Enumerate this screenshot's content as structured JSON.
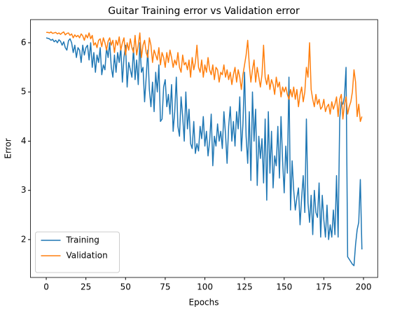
{
  "chart_data": {
    "type": "line",
    "title": "Guitar Training error vs Validation error",
    "x_label": "Epochs",
    "y_label": "Error",
    "x": [
      0,
      1,
      2,
      3,
      4,
      5,
      6,
      7,
      8,
      9,
      10,
      11,
      12,
      13,
      14,
      15,
      16,
      17,
      18,
      19,
      20,
      21,
      22,
      23,
      24,
      25,
      26,
      27,
      28,
      29,
      30,
      31,
      32,
      33,
      34,
      35,
      36,
      37,
      38,
      39,
      40,
      41,
      42,
      43,
      44,
      45,
      46,
      47,
      48,
      49,
      50,
      51,
      52,
      53,
      54,
      55,
      56,
      57,
      58,
      59,
      60,
      61,
      62,
      63,
      64,
      65,
      66,
      67,
      68,
      69,
      70,
      71,
      72,
      73,
      74,
      75,
      76,
      77,
      78,
      79,
      80,
      81,
      82,
      83,
      84,
      85,
      86,
      87,
      88,
      89,
      90,
      91,
      92,
      93,
      94,
      95,
      96,
      97,
      98,
      99,
      100,
      101,
      102,
      103,
      104,
      105,
      106,
      107,
      108,
      109,
      110,
      111,
      112,
      113,
      114,
      115,
      116,
      117,
      118,
      119,
      120,
      121,
      122,
      123,
      124,
      125,
      126,
      127,
      128,
      129,
      130,
      131,
      132,
      133,
      134,
      135,
      136,
      137,
      138,
      139,
      140,
      141,
      142,
      143,
      144,
      145,
      146,
      147,
      148,
      149,
      150,
      151,
      152,
      153,
      154,
      155,
      156,
      157,
      158,
      159,
      160,
      161,
      162,
      163,
      164,
      165,
      166,
      167,
      168,
      169,
      170,
      171,
      172,
      173,
      174,
      175,
      176,
      177,
      178,
      179,
      180,
      181,
      182,
      183,
      184,
      185,
      186,
      187,
      188,
      189,
      190,
      191,
      192,
      193,
      194,
      195,
      196,
      197,
      198,
      199
    ],
    "series": [
      {
        "name": "Training",
        "color": "#1f77b4",
        "values": [
          6.1,
          6.09,
          6.08,
          6.05,
          6.07,
          6.02,
          6.05,
          6.0,
          6.06,
          6.03,
          5.95,
          6.02,
          5.9,
          5.85,
          6.04,
          6.08,
          6.0,
          5.8,
          5.95,
          5.7,
          5.9,
          5.85,
          5.6,
          5.95,
          5.75,
          5.9,
          5.95,
          5.65,
          6.0,
          5.5,
          5.8,
          5.4,
          5.75,
          5.6,
          5.9,
          5.35,
          5.55,
          5.45,
          5.9,
          5.7,
          6.0,
          5.5,
          5.3,
          5.75,
          5.4,
          5.8,
          5.6,
          5.9,
          5.2,
          5.7,
          5.95,
          5.1,
          5.6,
          5.45,
          5.3,
          5.9,
          5.25,
          5.65,
          5.15,
          6.0,
          5.4,
          5.5,
          4.8,
          5.3,
          5.85,
          5.05,
          4.7,
          5.2,
          4.6,
          5.4,
          5.0,
          5.55,
          4.4,
          4.45,
          5.1,
          5.25,
          4.7,
          4.95,
          4.55,
          5.15,
          4.2,
          4.6,
          5.3,
          4.3,
          4.1,
          4.9,
          4.5,
          4.0,
          5.0,
          4.25,
          4.65,
          3.95,
          3.85,
          4.4,
          3.75,
          3.95,
          3.8,
          4.3,
          4.05,
          4.5,
          3.9,
          4.2,
          3.7,
          4.0,
          4.55,
          3.5,
          4.1,
          3.9,
          4.35,
          4.0,
          4.2,
          3.85,
          4.6,
          4.15,
          3.55,
          4.3,
          4.7,
          4.0,
          4.4,
          3.9,
          4.6,
          4.25,
          4.9,
          3.8,
          4.35,
          5.4,
          4.1,
          3.55,
          4.6,
          3.2,
          5.0,
          4.0,
          4.65,
          3.1,
          4.1,
          3.65,
          4.05,
          3.15,
          4.45,
          2.8,
          4.6,
          3.35,
          4.2,
          3.05,
          3.7,
          3.5,
          4.3,
          3.25,
          4.5,
          3.6,
          2.95,
          3.9,
          3.35,
          5.3,
          2.6,
          3.6,
          3.0,
          2.6,
          2.85,
          3.05,
          2.3,
          2.85,
          3.3,
          2.55,
          4.45,
          2.75,
          2.35,
          2.9,
          2.1,
          3.0,
          2.55,
          2.45,
          3.15,
          2.05,
          2.9,
          2.4,
          2.05,
          2.7,
          2.0,
          2.3,
          2.05,
          2.6,
          2.1,
          3.3,
          2.05,
          4.45,
          4.8,
          4.75,
          4.9,
          5.5,
          1.65,
          1.6,
          1.55,
          1.5,
          1.47,
          1.9,
          2.2,
          2.35,
          3.22,
          1.8
        ]
      },
      {
        "name": "Validation",
        "color": "#ff7f0e",
        "values": [
          6.21,
          6.21,
          6.2,
          6.22,
          6.19,
          6.2,
          6.21,
          6.18,
          6.2,
          6.17,
          6.2,
          6.22,
          6.16,
          6.19,
          6.2,
          6.15,
          6.18,
          6.1,
          6.16,
          6.12,
          6.15,
          6.1,
          6.18,
          6.14,
          6.05,
          6.16,
          6.1,
          6.2,
          6.08,
          6.15,
          5.95,
          6.0,
          5.9,
          6.05,
          6.08,
          5.92,
          6.1,
          6.0,
          5.85,
          6.03,
          6.1,
          5.95,
          6.05,
          5.8,
          6.05,
          5.95,
          6.12,
          5.85,
          6.0,
          6.1,
          5.75,
          6.0,
          5.85,
          6.08,
          5.9,
          5.8,
          6.15,
          5.75,
          5.95,
          6.2,
          5.7,
          5.95,
          6.05,
          5.8,
          5.7,
          6.1,
          5.95,
          5.6,
          5.85,
          5.75,
          5.65,
          5.9,
          5.55,
          5.8,
          5.7,
          5.5,
          5.8,
          5.6,
          5.85,
          5.7,
          5.5,
          5.65,
          5.55,
          5.8,
          5.5,
          5.4,
          5.75,
          5.55,
          5.6,
          5.45,
          5.65,
          5.3,
          5.7,
          5.45,
          5.6,
          5.95,
          5.5,
          5.4,
          5.65,
          5.3,
          5.55,
          5.4,
          5.7,
          5.45,
          5.35,
          5.55,
          5.25,
          5.5,
          5.45,
          5.2,
          5.4,
          5.35,
          5.55,
          5.3,
          5.45,
          5.25,
          5.4,
          5.15,
          5.35,
          5.5,
          5.2,
          5.45,
          5.3,
          5.05,
          5.35,
          5.55,
          5.75,
          6.05,
          5.55,
          5.2,
          5.45,
          5.65,
          5.2,
          5.5,
          5.3,
          5.1,
          5.35,
          5.95,
          5.3,
          5.15,
          5.35,
          5.05,
          5.25,
          5.15,
          4.95,
          5.3,
          5.1,
          5.2,
          4.9,
          5.1,
          5.0,
          5.1,
          4.95,
          4.85,
          5.05,
          4.9,
          5.1,
          4.85,
          5.05,
          4.7,
          4.95,
          5.1,
          4.8,
          5.0,
          5.5,
          5.3,
          6.0,
          5.05,
          4.85,
          4.7,
          4.95,
          4.75,
          4.85,
          4.65,
          4.7,
          4.85,
          4.6,
          4.7,
          4.75,
          4.55,
          4.8,
          4.65,
          4.75,
          4.9,
          4.5,
          4.85,
          4.95,
          4.45,
          4.75,
          4.9,
          4.55,
          4.7,
          4.8,
          5.0,
          5.45,
          5.2,
          4.5,
          4.75,
          4.4,
          4.5
        ]
      }
    ],
    "xlim": [
      -9.95,
      208.95
    ],
    "xticks": [
      0,
      25,
      50,
      75,
      100,
      125,
      150,
      175,
      200
    ],
    "ylim": [
      1.23,
      6.47
    ],
    "yticks": [
      2,
      3,
      4,
      5,
      6
    ],
    "legend": "lower left",
    "grid": false
  }
}
